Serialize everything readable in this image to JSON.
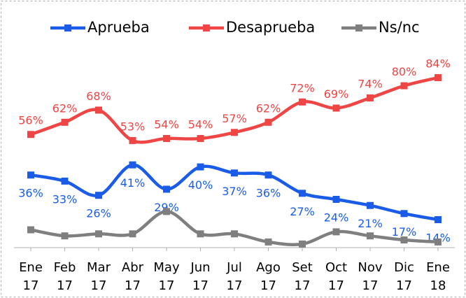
{
  "chart_data": {
    "type": "line",
    "categories": [
      "Ene 17",
      "Feb 17",
      "Mar 17",
      "Abr 17",
      "May 17",
      "Jun 17",
      "Jul 17",
      "Ago 17",
      "Set 17",
      "Oct 17",
      "Nov 17",
      "Dic 17",
      "Ene 18"
    ],
    "series": [
      {
        "name": "Aprueba",
        "color": "#1a5ce8",
        "label_side": "below",
        "values": [
          36,
          33,
          26,
          41,
          29,
          40,
          37,
          36,
          27,
          24,
          21,
          17,
          14
        ],
        "value_labels": [
          "36%",
          "33%",
          "26%",
          "41%",
          "29%",
          "40%",
          "37%",
          "36%",
          "27%",
          "24%",
          "21%",
          "17%",
          "14%"
        ]
      },
      {
        "name": "Desaprueba",
        "color": "#ef4545",
        "label_side": "above",
        "values": [
          56,
          62,
          68,
          53,
          54,
          54,
          57,
          62,
          72,
          69,
          74,
          80,
          84
        ],
        "value_labels": [
          "56%",
          "62%",
          "68%",
          "53%",
          "54%",
          "54%",
          "57%",
          "62%",
          "72%",
          "69%",
          "74%",
          "80%",
          "84%"
        ]
      },
      {
        "name": "Ns/nc",
        "color": "#7f7f7f",
        "values": [
          9,
          6,
          7,
          7,
          18,
          7,
          7,
          3,
          2,
          8,
          6,
          4,
          3
        ]
      }
    ],
    "ylim": [
      0,
      90
    ]
  }
}
